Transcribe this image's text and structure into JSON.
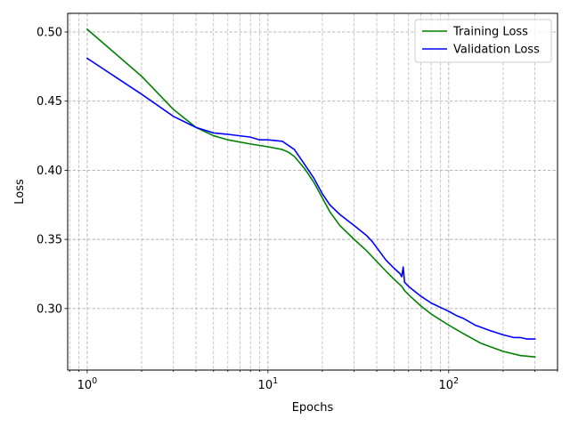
{
  "chart_data": {
    "type": "line",
    "title": "",
    "xlabel": "Epochs",
    "ylabel": "Loss",
    "xscale": "log",
    "xlim": [
      0.78,
      400
    ],
    "ylim": [
      0.2555,
      0.5135
    ],
    "grid": true,
    "grid_style": "dashed",
    "grid_which": "both",
    "legend_position": "top-right",
    "x_major_ticks": [
      1,
      10,
      100
    ],
    "x_tick_labels": [
      "10^0",
      "10^1",
      "10^2"
    ],
    "y_ticks": [
      0.3,
      0.35,
      0.4,
      0.45,
      0.5
    ],
    "y_tick_labels": [
      "0.30",
      "0.35",
      "0.40",
      "0.45",
      "0.50"
    ],
    "series": [
      {
        "name": "Training Loss",
        "color": "#008000",
        "x": [
          1,
          2,
          3,
          4,
          5,
          6,
          8,
          10,
          12,
          13,
          14,
          16,
          18,
          20,
          22,
          25,
          30,
          35,
          40,
          45,
          50,
          55,
          57,
          60,
          70,
          80,
          100,
          120,
          150,
          200,
          250,
          300
        ],
        "y": [
          0.502,
          0.468,
          0.444,
          0.431,
          0.425,
          0.422,
          0.419,
          0.417,
          0.415,
          0.413,
          0.41,
          0.401,
          0.391,
          0.38,
          0.37,
          0.36,
          0.35,
          0.342,
          0.334,
          0.327,
          0.321,
          0.316,
          0.313,
          0.31,
          0.302,
          0.296,
          0.288,
          0.282,
          0.275,
          0.269,
          0.266,
          0.265
        ]
      },
      {
        "name": "Validation Loss",
        "color": "#0000ff",
        "x": [
          1,
          2,
          3,
          4,
          5,
          6,
          8,
          9,
          10,
          12,
          14,
          16,
          18,
          20,
          22,
          25,
          30,
          35,
          38,
          40,
          45,
          50,
          54,
          55,
          56,
          57,
          60,
          70,
          80,
          100,
          110,
          120,
          140,
          170,
          200,
          230,
          250,
          270,
          300
        ],
        "y": [
          0.481,
          0.455,
          0.439,
          0.431,
          0.427,
          0.426,
          0.424,
          0.422,
          0.422,
          0.421,
          0.415,
          0.404,
          0.394,
          0.383,
          0.375,
          0.368,
          0.36,
          0.353,
          0.348,
          0.344,
          0.335,
          0.329,
          0.325,
          0.323,
          0.33,
          0.319,
          0.316,
          0.309,
          0.304,
          0.298,
          0.295,
          0.293,
          0.288,
          0.284,
          0.281,
          0.279,
          0.279,
          0.278,
          0.278
        ]
      }
    ]
  }
}
